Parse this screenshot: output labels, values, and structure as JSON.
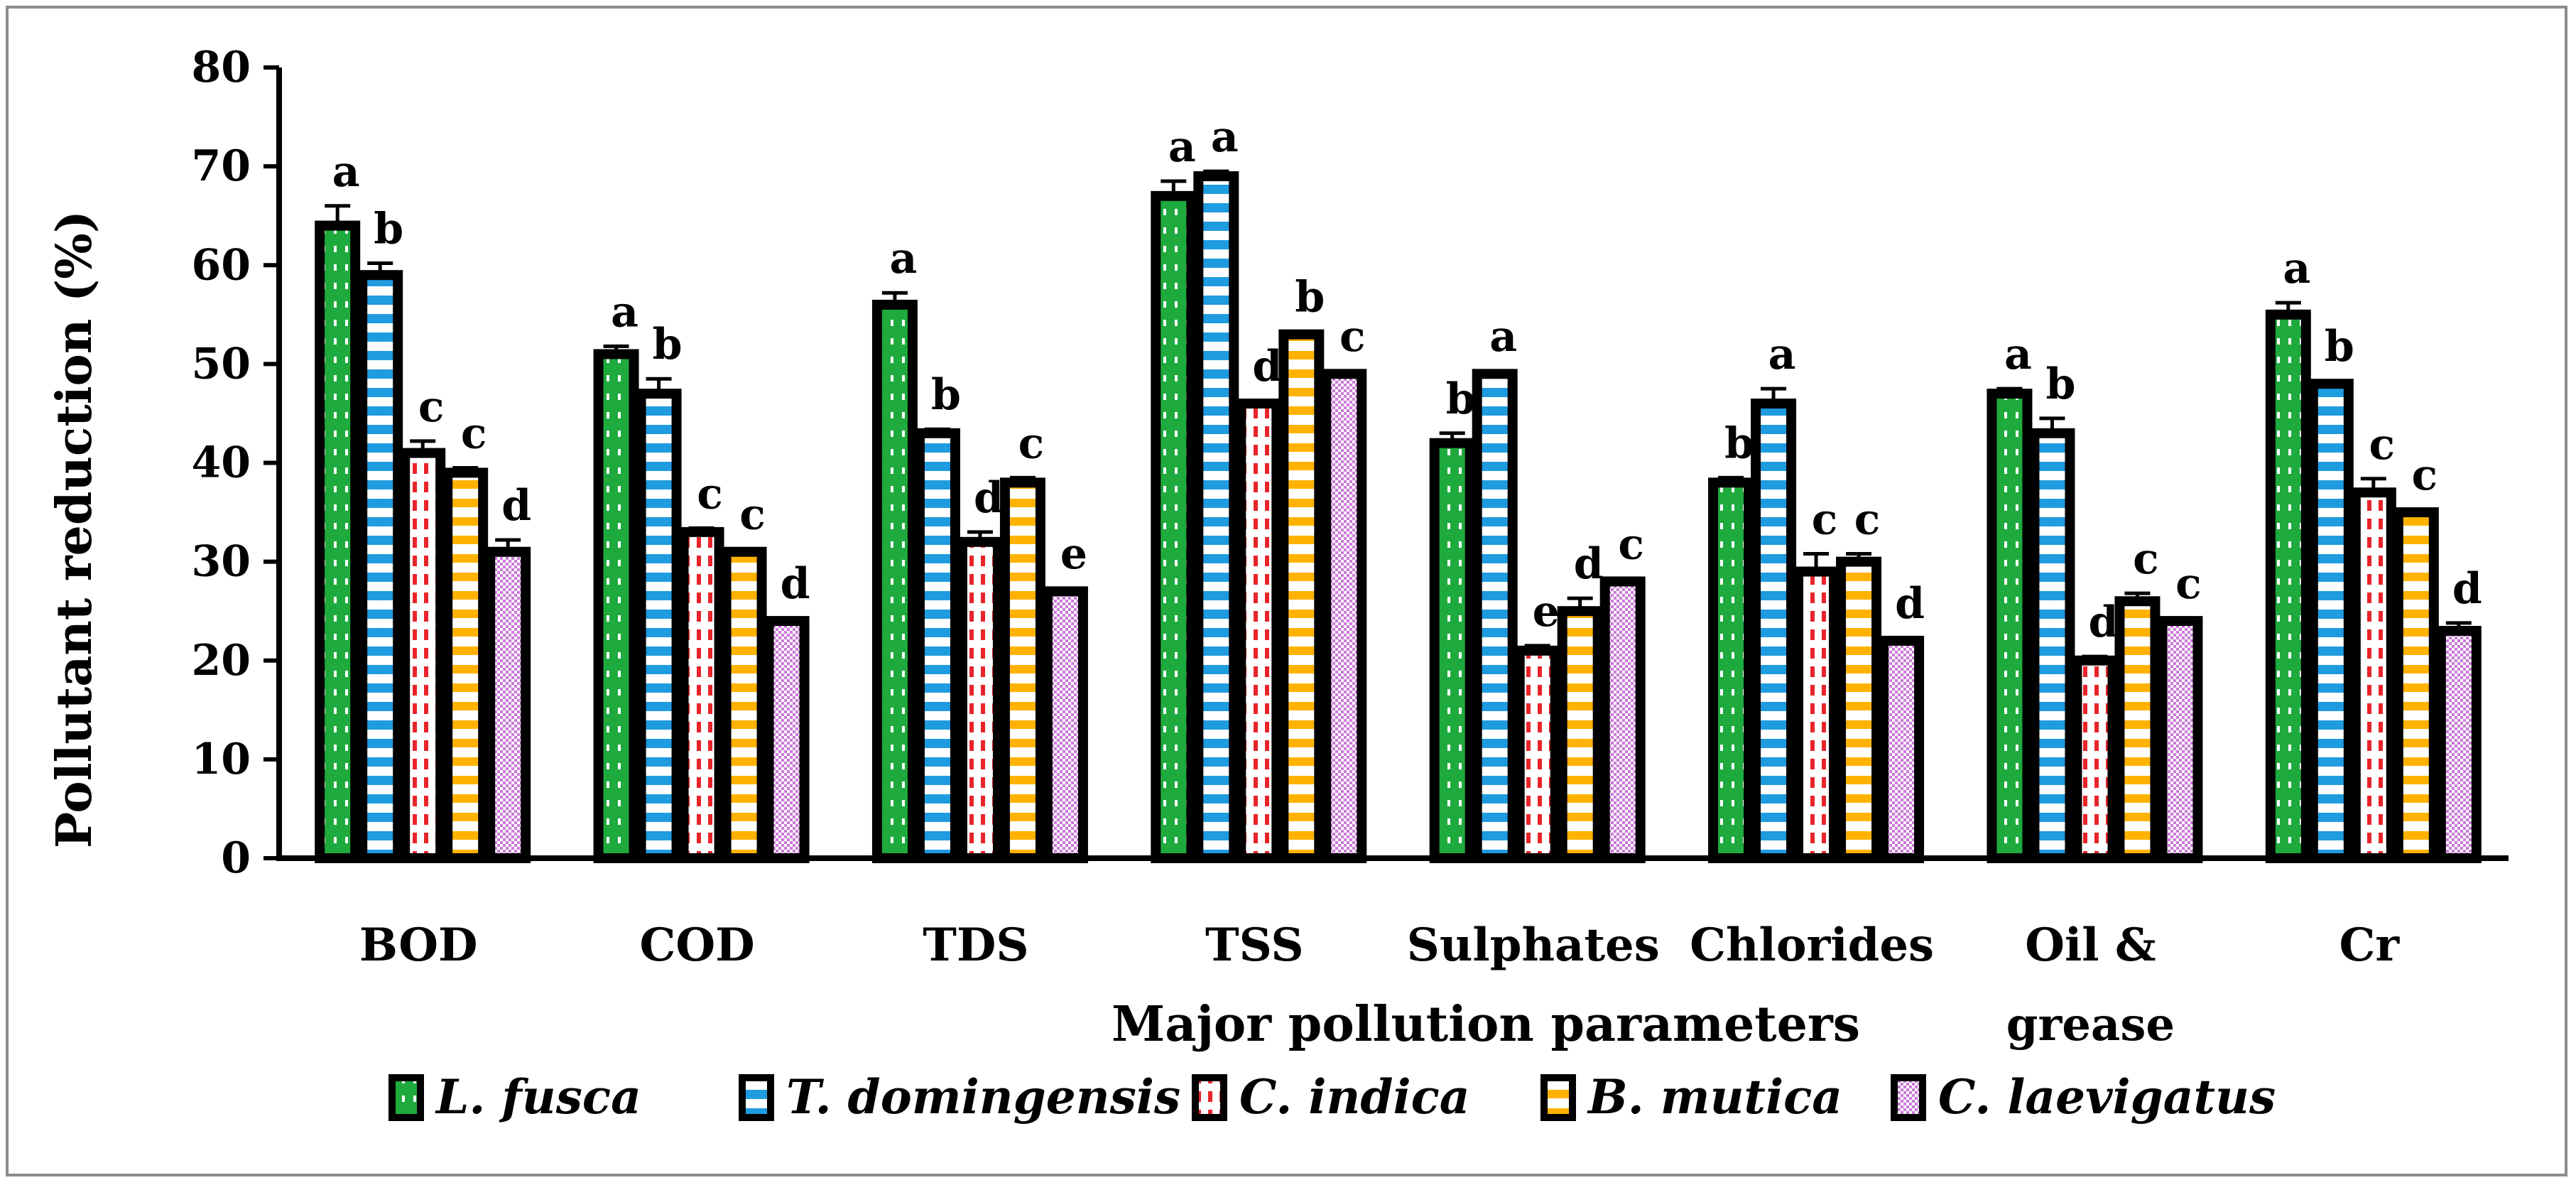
{
  "chart_data": {
    "type": "bar",
    "title": "",
    "xlabel": "Major pollution parameters",
    "ylabel": "Pollutant reduction  (%)",
    "ylim": [
      0,
      80
    ],
    "yticks": [
      "0",
      "10",
      "20",
      "30",
      "40",
      "50",
      "60",
      "70",
      "80"
    ],
    "categories": [
      [
        "BOD"
      ],
      [
        "COD"
      ],
      [
        "TDS"
      ],
      [
        "TSS"
      ],
      [
        "Sulphates"
      ],
      [
        "Chlorides"
      ],
      [
        "Oil &",
        "grease"
      ],
      [
        "Cr"
      ]
    ],
    "legend_position": "bottom",
    "series": [
      {
        "name": "L. fusca",
        "color": "#1faa3e",
        "values": [
          64,
          51,
          56,
          67,
          42,
          38,
          47,
          55
        ],
        "errors": [
          2,
          0.8,
          1.2,
          1.5,
          1,
          0.5,
          0.5,
          1.2
        ],
        "letters": [
          "a",
          "a",
          "a",
          "a",
          "b",
          "b",
          "a",
          "a"
        ]
      },
      {
        "name": "T. domingensis",
        "color": "#1f9be0",
        "values": [
          59,
          47,
          43,
          69,
          49,
          46,
          43,
          48
        ],
        "errors": [
          1.2,
          1.5,
          0.4,
          0.5,
          0.3,
          1.5,
          1.5,
          0.3
        ],
        "letters": [
          "b",
          "b",
          "b",
          "a",
          "a",
          "a",
          "b",
          "b"
        ]
      },
      {
        "name": "C. indica",
        "color": "#e8242a",
        "values": [
          41,
          33,
          32,
          46,
          21,
          29,
          20,
          37
        ],
        "errors": [
          1.2,
          0.4,
          1,
          0.3,
          0.5,
          1.8,
          0.4,
          1.4
        ],
        "letters": [
          "c",
          "c",
          "d",
          "d",
          "e",
          "c",
          "d",
          "c"
        ]
      },
      {
        "name": "B. mutica",
        "color": "#ffb300",
        "values": [
          39,
          31,
          38,
          53,
          25,
          30,
          26,
          35
        ],
        "errors": [
          0.5,
          0.3,
          0.5,
          0.3,
          1.3,
          0.8,
          0.8,
          0.3
        ],
        "letters": [
          "c",
          "c",
          "c",
          "b",
          "d",
          "c",
          "c",
          "c"
        ]
      },
      {
        "name": "C. laevigatus",
        "color": "#c97ad6",
        "values": [
          31,
          24,
          27,
          49,
          28,
          22,
          24,
          23
        ],
        "errors": [
          1.2,
          0.3,
          0.3,
          0.3,
          0.3,
          0.3,
          0.3,
          0.8
        ],
        "letters": [
          "d",
          "d",
          "e",
          "c",
          "c",
          "d",
          "c",
          "d"
        ]
      }
    ]
  }
}
